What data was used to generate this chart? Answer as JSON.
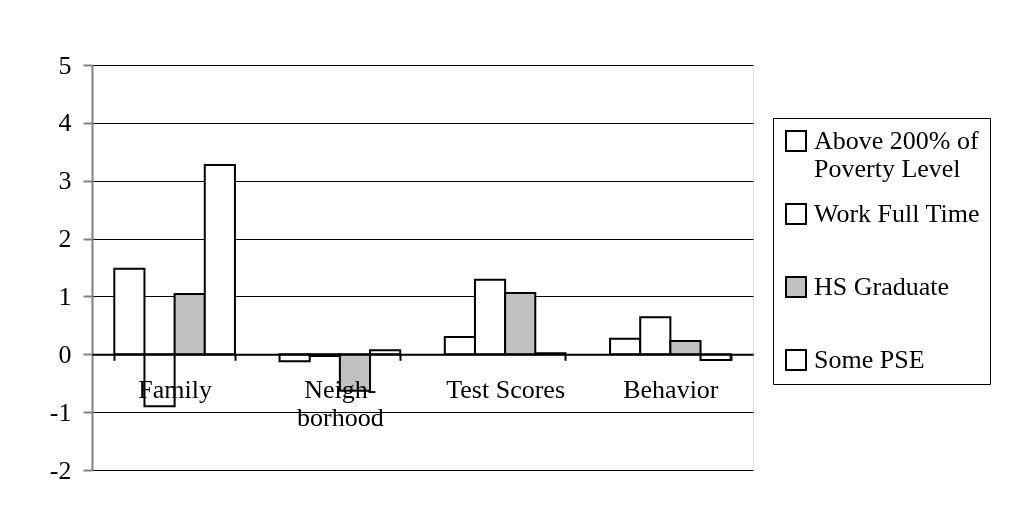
{
  "chart_data": {
    "type": "bar",
    "categories": [
      "Family",
      "Neigh-borhood",
      "Test Scores",
      "Behavior"
    ],
    "series": [
      {
        "name": "Above 200% of Poverty Level",
        "color": "#ffffff",
        "values": [
          1.48,
          -0.12,
          0.3,
          0.27
        ]
      },
      {
        "name": "Work Full Time",
        "color": "#ffffff",
        "values": [
          -0.9,
          -0.03,
          1.29,
          0.64
        ]
      },
      {
        "name": "HS Graduate",
        "color": "#c0c0c0",
        "values": [
          1.04,
          -0.63,
          1.06,
          0.23
        ]
      },
      {
        "name": "Some PSE",
        "color": "#ffffff",
        "values": [
          3.27,
          0.07,
          0.02,
          -0.1
        ]
      }
    ],
    "ylim": [
      -2,
      5
    ],
    "yticks": [
      -2,
      -1,
      0,
      1,
      2,
      3,
      4,
      5
    ],
    "grid": "y",
    "legend": "right"
  }
}
